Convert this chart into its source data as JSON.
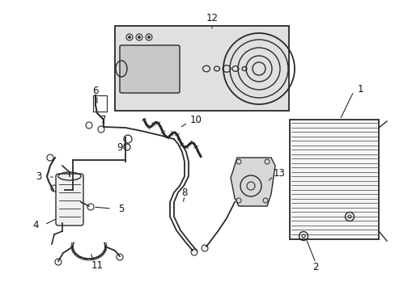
{
  "bg_color": "#ffffff",
  "line_color": "#2a2a2a",
  "text_color": "#111111",
  "box_bg": "#e0e0e0",
  "figsize": [
    4.89,
    3.6
  ],
  "dpi": 100
}
